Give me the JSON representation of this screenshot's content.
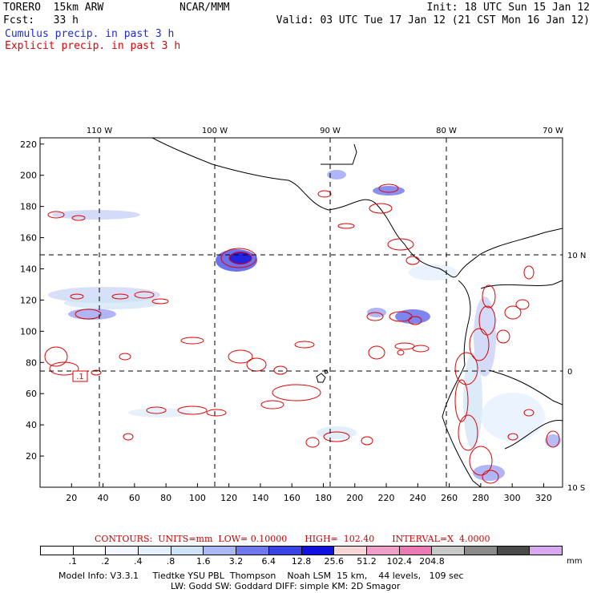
{
  "header": {
    "model": "TORERO  15km ARW",
    "org": "NCAR/MMM",
    "init": "Init: 18 UTC Sun 15 Jan 12",
    "fcst": "Fcst:   33 h",
    "valid": "Valid: 03 UTC Tue 17 Jan 12 (21 CST Mon 16 Jan 12)",
    "legend_cumulus": "Cumulus precip. in past 3 h",
    "legend_explicit": "Explicit precip. in past 3 h"
  },
  "colors": {
    "cumulus": "#1e2bd6",
    "explicit": "#e00000",
    "coast": "#000000"
  },
  "map": {
    "lon_labels": [
      "110 W",
      "100 W",
      "90 W",
      "80 W",
      "70 W"
    ],
    "lat_labels": [
      "10 N",
      "0",
      "10 S"
    ],
    "y_ticks": [
      "220",
      "200",
      "180",
      "160",
      "140",
      "120",
      "100",
      "80",
      "60",
      "40",
      "20"
    ],
    "x_ticks": [
      "20",
      "40",
      "60",
      "80",
      "100",
      "120",
      "140",
      "160",
      "180",
      "200",
      "220",
      "240",
      "260",
      "280",
      "300",
      "320"
    ],
    "grid_x_range": [
      0,
      332
    ],
    "grid_y_range": [
      0,
      224
    ],
    "contour_label": ".1"
  },
  "contour_info": {
    "units": "CONTOURS:  UNITS=mm  LOW= 0.10000",
    "high": "HIGH=  102.40",
    "interval": "INTERVAL=X  4.0000"
  },
  "colorbar": {
    "labels": [
      ".1",
      ".2",
      ".4",
      ".8",
      "1.6",
      "3.2",
      "6.4",
      "12.8",
      "25.6",
      "51.2",
      "102.4",
      "204.8"
    ],
    "unit": "mm",
    "colors": [
      "#ffffff",
      "#ffffff",
      "#f2f7ff",
      "#e3effd",
      "#cfe3f7",
      "#a9b8f2",
      "#6f79ec",
      "#3a43e6",
      "#1010e0",
      "#f6d6d6",
      "#f0a0c8",
      "#eb79b4",
      "#c8c8c8",
      "#8a8a8a",
      "#4a4a4a",
      "#d8a8f0"
    ]
  },
  "footer": {
    "line1": "Model Info: V3.3.1     Tiedtke YSU PBL  Thompson    Noah LSM  15 km,    44 levels,   109 sec",
    "line2": "LW: Godd SW: Goddard DIFF: simple KM: 2D Smagor"
  }
}
